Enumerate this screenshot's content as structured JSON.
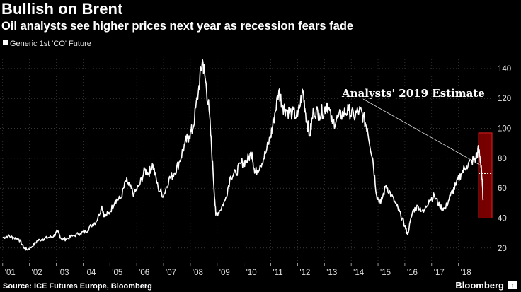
{
  "header": {
    "title": "Bullish on Brent",
    "subtitle": "Oil analysts see higher prices next year as recession fears fade"
  },
  "legend": {
    "label": "Generic 1st 'CO' Future"
  },
  "footer": {
    "source": "Source: ICE Futures Europe, Bloomberg",
    "brand": "Bloomberg",
    "brand_mark": "↑"
  },
  "colors": {
    "background": "#000000",
    "series": "#ffffff",
    "highlight_fill": "#8b0000",
    "highlight_stroke": "#e02020",
    "estimate_line": "#ffffff"
  },
  "chart_data": {
    "type": "line",
    "title": "Bullish on Brent",
    "subtitle": "Oil analysts see higher prices next year as recession fears fade",
    "xlabel": "",
    "ylabel": "",
    "x_range": [
      2000.9,
      2019.25
    ],
    "ylim": [
      10,
      148
    ],
    "y_ticks": [
      20,
      40,
      60,
      80,
      100,
      120,
      140
    ],
    "x_ticks": [
      {
        "label": "'01",
        "value": 2001.0
      },
      {
        "label": "'02",
        "value": 2002.0
      },
      {
        "label": "'03",
        "value": 2003.0
      },
      {
        "label": "'04",
        "value": 2004.0
      },
      {
        "label": "'05",
        "value": 2005.0
      },
      {
        "label": "'06",
        "value": 2006.0
      },
      {
        "label": "'07",
        "value": 2007.0
      },
      {
        "label": "'08",
        "value": 2008.0
      },
      {
        "label": "'09",
        "value": 2009.0
      },
      {
        "label": "'10",
        "value": 2010.0
      },
      {
        "label": "'11",
        "value": 2011.0
      },
      {
        "label": "'12",
        "value": 2012.0
      },
      {
        "label": "'13",
        "value": 2013.0
      },
      {
        "label": "'14",
        "value": 2014.0
      },
      {
        "label": "'15",
        "value": 2015.0
      },
      {
        "label": "'16",
        "value": 2016.0
      },
      {
        "label": "'17",
        "value": 2017.0
      },
      {
        "label": "'18",
        "value": 2018.0
      }
    ],
    "grid": true,
    "series": [
      {
        "name": "Generic 1st 'CO' Future",
        "x": [
          2001.0,
          2001.2,
          2001.4,
          2001.6,
          2001.8,
          2001.9,
          2002.1,
          2002.3,
          2002.5,
          2002.7,
          2002.9,
          2003.05,
          2003.2,
          2003.35,
          2003.6,
          2003.9,
          2004.1,
          2004.3,
          2004.5,
          2004.7,
          2004.8,
          2005.0,
          2005.2,
          2005.4,
          2005.6,
          2005.7,
          2005.9,
          2006.1,
          2006.3,
          2006.45,
          2006.6,
          2006.8,
          2007.0,
          2007.2,
          2007.4,
          2007.6,
          2007.8,
          2007.95,
          2008.1,
          2008.3,
          2008.45,
          2008.55,
          2008.7,
          2008.85,
          2008.95,
          2009.1,
          2009.3,
          2009.5,
          2009.7,
          2009.9,
          2010.1,
          2010.3,
          2010.4,
          2010.6,
          2010.8,
          2011.0,
          2011.1,
          2011.3,
          2011.45,
          2011.6,
          2011.8,
          2012.0,
          2012.2,
          2012.3,
          2012.45,
          2012.6,
          2012.8,
          2013.0,
          2013.1,
          2013.3,
          2013.5,
          2013.7,
          2013.9,
          2014.1,
          2014.3,
          2014.45,
          2014.6,
          2014.8,
          2014.95,
          2015.1,
          2015.3,
          2015.5,
          2015.7,
          2015.85,
          2016.0,
          2016.1,
          2016.3,
          2016.5,
          2016.7,
          2016.9,
          2017.1,
          2017.3,
          2017.5,
          2017.7,
          2017.9,
          2018.1,
          2018.3,
          2018.5,
          2018.65,
          2018.75,
          2018.85,
          2018.92
        ],
        "values": [
          27,
          28,
          27,
          26,
          20,
          19,
          21,
          25,
          26,
          27,
          28,
          31,
          26,
          26,
          28,
          30,
          31,
          35,
          38,
          48,
          41,
          44,
          52,
          53,
          65,
          62,
          56,
          62,
          72,
          70,
          76,
          60,
          55,
          66,
          70,
          78,
          90,
          95,
          100,
          125,
          146,
          134,
          112,
          70,
          42,
          45,
          52,
          68,
          70,
          77,
          78,
          84,
          70,
          75,
          83,
          95,
          105,
          125,
          115,
          112,
          110,
          108,
          125,
          110,
          95,
          112,
          110,
          112,
          117,
          103,
          107,
          110,
          112,
          108,
          112,
          108,
          100,
          80,
          55,
          50,
          62,
          55,
          48,
          42,
          35,
          29,
          45,
          48,
          44,
          52,
          55,
          48,
          46,
          55,
          62,
          70,
          75,
          78,
          80,
          86,
          75,
          52
        ]
      }
    ],
    "annotations": [
      {
        "type": "highlight_box",
        "x_from": 2018.75,
        "x_to": 2019.25,
        "y_from": 40,
        "y_to": 97
      },
      {
        "type": "callout",
        "text": "Analysts' 2019 Estimate",
        "target_x": 2019.0,
        "target_y": 70
      },
      {
        "type": "dotted_estimate_line",
        "x_from": 2018.75,
        "x_to": 2019.25,
        "y": 70
      }
    ]
  }
}
